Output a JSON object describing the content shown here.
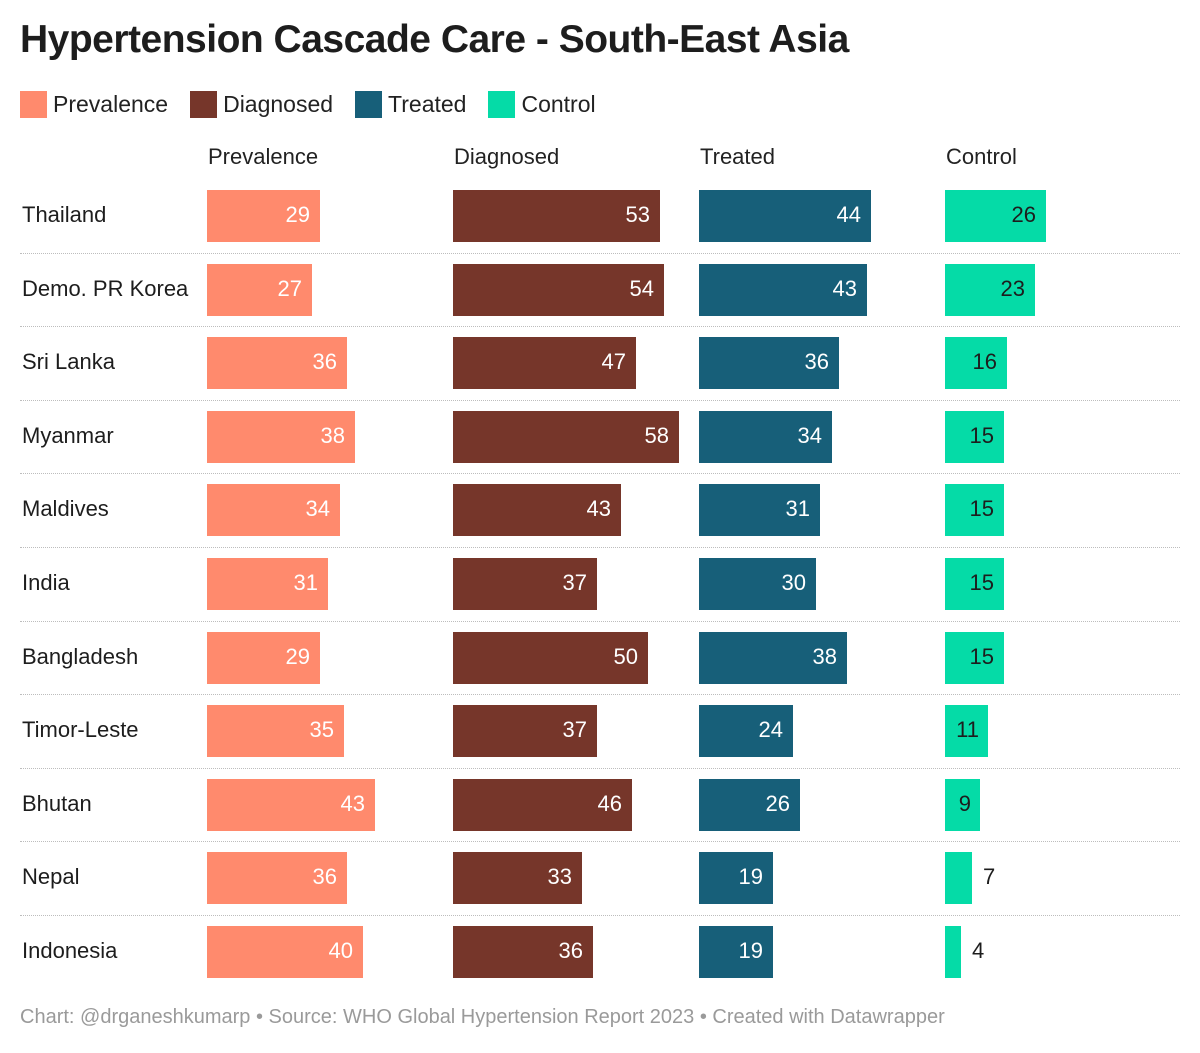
{
  "title": "Hypertension Cascade Care - South-East Asia",
  "footer": "Chart: @drganeshkumarp • Source: WHO Global Hypertension Report 2023 • Created with Datawrapper",
  "colors": {
    "prevalence": "#ff8a6d",
    "diagnosed": "#76362a",
    "treated": "#175f79",
    "control": "#05dba7"
  },
  "chart_data": {
    "type": "bar",
    "title": "Hypertension Cascade Care - South-East Asia",
    "legend": "top-left",
    "categories": [
      "Thailand",
      "Demo. PR Korea",
      "Sri Lanka",
      "Myanmar",
      "Maldives",
      "India",
      "Bangladesh",
      "Timor-Leste",
      "Bhutan",
      "Nepal",
      "Indonesia"
    ],
    "series": [
      {
        "name": "Prevalence",
        "values": [
          29,
          27,
          36,
          38,
          34,
          31,
          29,
          35,
          43,
          36,
          40
        ]
      },
      {
        "name": "Diagnosed",
        "values": [
          53,
          54,
          47,
          58,
          43,
          37,
          50,
          37,
          46,
          33,
          36
        ]
      },
      {
        "name": "Treated",
        "values": [
          44,
          43,
          36,
          34,
          31,
          30,
          38,
          24,
          26,
          19,
          19
        ]
      },
      {
        "name": "Control",
        "values": [
          26,
          23,
          16,
          15,
          15,
          15,
          15,
          11,
          9,
          7,
          4
        ]
      }
    ]
  }
}
